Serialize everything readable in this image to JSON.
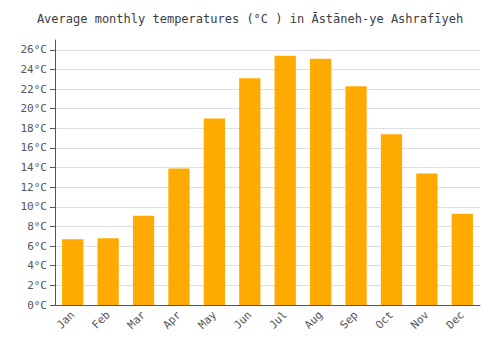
{
  "chart_data": {
    "type": "bar",
    "title": "Average monthly temperatures (°C ) in Āstāneh-ye Ashrafīyeh",
    "categories": [
      "Jan",
      "Feb",
      "Mar",
      "Apr",
      "May",
      "Jun",
      "Jul",
      "Aug",
      "Sep",
      "Oct",
      "Nov",
      "Dec"
    ],
    "values": [
      6.7,
      6.8,
      9.1,
      13.9,
      19.0,
      23.1,
      25.4,
      25.1,
      22.3,
      17.4,
      13.4,
      9.3
    ],
    "color": "#FFAA00",
    "ylim": [
      0,
      27
    ],
    "yticks": [
      {
        "value": 0,
        "label": "0°C"
      },
      {
        "value": 2,
        "label": "2°C"
      },
      {
        "value": 4,
        "label": "4°C"
      },
      {
        "value": 6,
        "label": "6°C"
      },
      {
        "value": 8,
        "label": "8°C"
      },
      {
        "value": 10,
        "label": "10°C"
      },
      {
        "value": 12,
        "label": "12°C"
      },
      {
        "value": 14,
        "label": "14°C"
      },
      {
        "value": 16,
        "label": "16°C"
      },
      {
        "value": 18,
        "label": "18°C"
      },
      {
        "value": 20,
        "label": "20°C"
      },
      {
        "value": 22,
        "label": "22°C"
      },
      {
        "value": 24,
        "label": "24°C"
      },
      {
        "value": 26,
        "label": "26°C"
      }
    ],
    "grid": true
  }
}
